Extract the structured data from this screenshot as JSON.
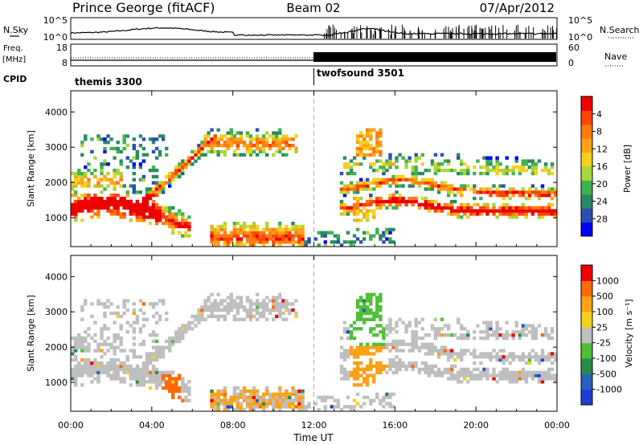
{
  "header": {
    "station": "Prince George (fitACF)",
    "beam": "Beam 02",
    "date": "07/Apr/2012"
  },
  "top_panels": {
    "nsky_label": "N.Sky",
    "nsky_ticks": [
      "10^5",
      "10^0"
    ],
    "nsearch_label": "N.Search",
    "freq_label": "Freq.",
    "freq_unit": "[MHz]",
    "freq_ticks": [
      "18",
      "8"
    ],
    "nave_ticks": [
      "60",
      "0"
    ],
    "nave_label": "Nave",
    "cpid_label": "CPID",
    "cpid_segments": [
      {
        "name": "themis 3300",
        "start_hour": 0
      },
      {
        "name": "twofsound 3501",
        "start_hour": 12
      }
    ]
  },
  "chart_data": [
    {
      "type": "heatmap",
      "name": "power",
      "xlabel": "",
      "ylabel": "Slant Range [km]",
      "x_range_hours": [
        0,
        24
      ],
      "y_range_km": [
        180,
        4600
      ],
      "y_ticks": [
        "1000",
        "2000",
        "3000",
        "4000"
      ],
      "colorbar": {
        "label": "Power [dB]",
        "ticks": [
          "4",
          "8",
          "12",
          "16",
          "20",
          "24",
          "28"
        ],
        "colors": [
          "#0000ff",
          "#2b4fb4",
          "#2a8a63",
          "#3fb24f",
          "#a9d63b",
          "#f2d21f",
          "#ffa118",
          "#ff7a10",
          "#ff4405",
          "#ee0000"
        ]
      }
    },
    {
      "type": "heatmap",
      "name": "velocity",
      "xlabel": "Time UT",
      "ylabel": "Slant Range [km]",
      "x_range_hours": [
        0,
        24
      ],
      "x_ticks": [
        "00:00",
        "04:00",
        "08:00",
        "12:00",
        "16:00",
        "20:00",
        "00:00"
      ],
      "y_range_km": [
        180,
        4600
      ],
      "y_ticks": [
        "1000",
        "2000",
        "3000",
        "4000"
      ],
      "colorbar": {
        "label": "Velocity [m s⁻¹]",
        "ticks": [
          "1000",
          "500",
          "100",
          "25",
          "-25",
          "-100",
          "-500",
          "-1000"
        ],
        "colors": [
          "#1c3fd1",
          "#2a5fc0",
          "#2b8a4a",
          "#4fbf3a",
          "#bfbfbf",
          "#f2d21f",
          "#ffa118",
          "#ff6a08",
          "#ee0000"
        ]
      }
    }
  ]
}
